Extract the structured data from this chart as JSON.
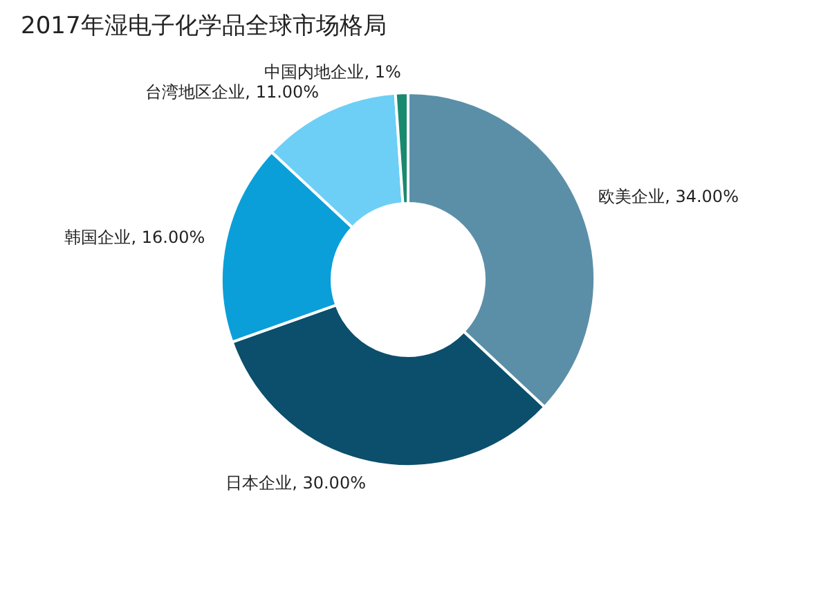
{
  "chart_data": {
    "type": "donut",
    "title": "2017年湿电子化学品全球市场格局",
    "categories": [
      "欧美企业",
      "日本企业",
      "韩国企业",
      "台湾地区企业",
      "中国内地企业"
    ],
    "values": [
      34,
      30,
      16,
      11,
      1
    ],
    "value_labels": [
      "34.00%",
      "30.00%",
      "16.00%",
      "11.00%",
      "1%"
    ],
    "colors": [
      "#5b8fa8",
      "#0b4f6c",
      "#0a9fd8",
      "#6dcff6",
      "#1a8a6e"
    ],
    "legend": false
  }
}
